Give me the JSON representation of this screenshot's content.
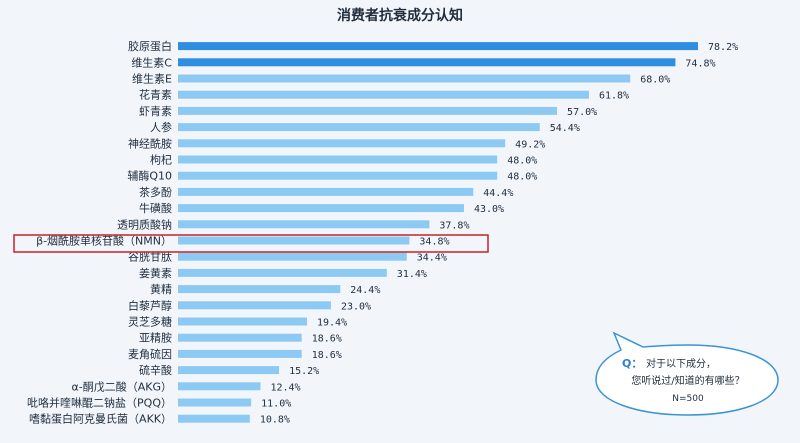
{
  "chart_data": {
    "type": "bar",
    "orientation": "horizontal",
    "title": "消费者抗衰成分认知",
    "categories": [
      "胶原蛋白",
      "维生素C",
      "维生素E",
      "花青素",
      "虾青素",
      "人参",
      "神经酰胺",
      "枸杞",
      "辅酶Q10",
      "茶多酚",
      "牛磺酸",
      "透明质酸钠",
      "β-烟酰胺单核苷酸（NMN）",
      "谷胱甘肽",
      "姜黄素",
      "黄精",
      "白藜芦醇",
      "灵芝多糖",
      "亚精胺",
      "麦角硫因",
      "硫辛酸",
      "α-酮戊二酸（AKG）",
      "吡咯并喹啉醌二钠盐（PQQ）",
      "嗜黏蛋白阿克曼氏菌（AKK）"
    ],
    "values": [
      78.2,
      74.8,
      68.0,
      61.8,
      57.0,
      54.4,
      49.2,
      48.0,
      48.0,
      44.4,
      43.0,
      37.8,
      34.8,
      34.4,
      31.4,
      24.4,
      23.0,
      19.4,
      18.6,
      18.6,
      15.2,
      12.4,
      11.0,
      10.8
    ],
    "value_labels": [
      "78.2%",
      "74.8%",
      "68.0%",
      "61.8%",
      "57.0%",
      "54.4%",
      "49.2%",
      "48.0%",
      "48.0%",
      "44.4%",
      "43.0%",
      "37.8%",
      "34.8%",
      "34.4%",
      "31.4%",
      "24.4%",
      "23.0%",
      "19.4%",
      "18.6%",
      "18.6%",
      "15.2%",
      "12.4%",
      "11.0%",
      "10.8%"
    ],
    "unit": "%",
    "highlighted_category": "β-烟酰胺单核苷酸（NMN）",
    "xlim": [
      0,
      100
    ],
    "grid": false,
    "colors": {
      "top_bars": "#2f8ee0",
      "bars": "#8ccaf3",
      "highlight_box": "#c8202a",
      "bubble_border": "#3b93d6",
      "q_label": "#2f7fcf"
    }
  },
  "callout": {
    "q_label": "Q：",
    "question_line1": "对于以下成分，",
    "question_line2": "您听说过/知道的有哪些？",
    "sample": "N=500"
  }
}
